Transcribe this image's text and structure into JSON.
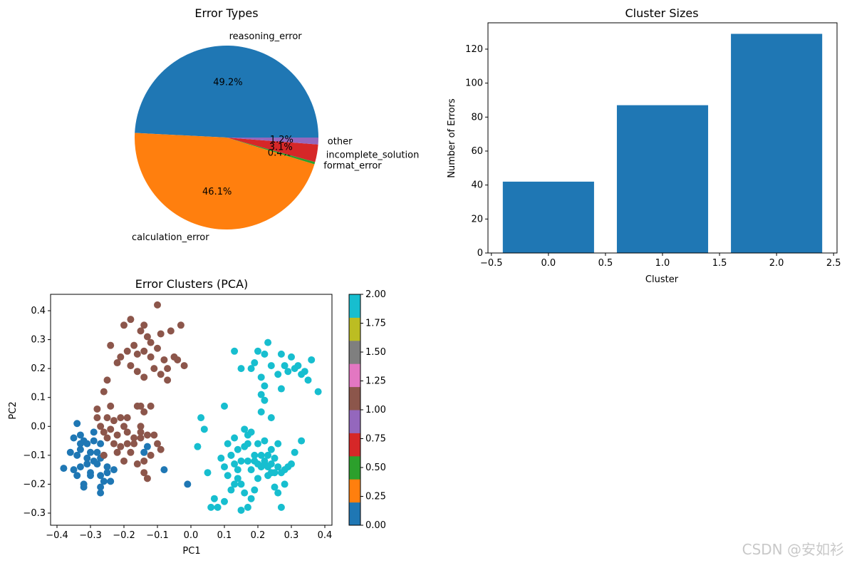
{
  "chart_data": [
    {
      "type": "pie",
      "title": "Error Types",
      "slices": [
        {
          "label": "reasoning_error",
          "value": 49.2,
          "pct_label": "49.2%",
          "color": "#1f77b4"
        },
        {
          "label": "calculation_error",
          "value": 46.1,
          "pct_label": "46.1%",
          "color": "#ff7f0e"
        },
        {
          "label": "format_error",
          "value": 0.4,
          "pct_label": "0.4%",
          "color": "#2ca02c"
        },
        {
          "label": "incomplete_solution",
          "value": 3.1,
          "pct_label": "3.1%",
          "color": "#d62728"
        },
        {
          "label": "other",
          "value": 1.2,
          "pct_label": "1.2%",
          "color": "#9467bd"
        }
      ]
    },
    {
      "type": "bar",
      "title": "Cluster Sizes",
      "xlabel": "Cluster",
      "ylabel": "Number of Errors",
      "x": [
        0,
        1,
        2
      ],
      "values": [
        42,
        87,
        129
      ],
      "bar_width": 0.8,
      "color": "#1f77b4",
      "xlim": [
        -0.53,
        2.53
      ],
      "ylim": [
        0,
        135.5
      ],
      "xticks": [
        "−0.5",
        "0.0",
        "0.5",
        "1.0",
        "1.5",
        "2.0",
        "2.5"
      ],
      "yticks": [
        "0",
        "20",
        "40",
        "60",
        "80",
        "100",
        "120"
      ]
    },
    {
      "type": "scatter",
      "title": "Error Clusters (PCA)",
      "xlabel": "PC1",
      "ylabel": "PC2",
      "xlim": [
        -0.4,
        0.4
      ],
      "ylim": [
        -0.3,
        0.4
      ],
      "xticks": [
        "−0.4",
        "−0.3",
        "−0.2",
        "−0.1",
        "0.0",
        "0.1",
        "0.2",
        "0.3",
        "0.4"
      ],
      "yticks": [
        "−0.3",
        "−0.2",
        "−0.1",
        "0.0",
        "0.1",
        "0.2",
        "0.3",
        "0.4"
      ],
      "colorbar": {
        "range": [
          0,
          2
        ],
        "ticks": [
          "0.00",
          "0.25",
          "0.50",
          "0.75",
          "1.00",
          "1.25",
          "1.50",
          "1.75",
          "2.00"
        ],
        "colors": [
          "#1f77b4",
          "#ff7f0e",
          "#2ca02c",
          "#d62728",
          "#9467bd",
          "#8c564b",
          "#e377c2",
          "#7f7f7f",
          "#bcbd22",
          "#17becf"
        ]
      },
      "series": [
        {
          "cluster": 0,
          "color": "#1f77b4",
          "points": [
            [
              -0.38,
              -0.145
            ],
            [
              -0.35,
              -0.04
            ],
            [
              -0.34,
              0.01
            ],
            [
              -0.33,
              -0.03
            ],
            [
              -0.32,
              -0.05
            ],
            [
              -0.33,
              -0.08
            ],
            [
              -0.34,
              -0.1
            ],
            [
              -0.31,
              -0.06
            ],
            [
              -0.3,
              -0.09
            ],
            [
              -0.29,
              -0.12
            ],
            [
              -0.28,
              -0.13
            ],
            [
              -0.27,
              -0.11
            ],
            [
              -0.27,
              -0.17
            ],
            [
              -0.26,
              -0.19
            ],
            [
              -0.25,
              -0.14
            ],
            [
              -0.24,
              -0.19
            ],
            [
              -0.31,
              -0.13
            ],
            [
              -0.32,
              -0.2
            ],
            [
              -0.3,
              -0.16
            ],
            [
              -0.29,
              -0.05
            ],
            [
              -0.29,
              -0.02
            ],
            [
              -0.27,
              -0.06
            ],
            [
              -0.26,
              -0.1
            ],
            [
              -0.23,
              -0.15
            ],
            [
              -0.35,
              -0.15
            ],
            [
              -0.34,
              -0.17
            ],
            [
              -0.33,
              -0.14
            ],
            [
              -0.32,
              -0.21
            ],
            [
              -0.27,
              -0.21
            ],
            [
              -0.27,
              -0.23
            ],
            [
              -0.3,
              -0.17
            ],
            [
              -0.25,
              -0.16
            ],
            [
              -0.28,
              -0.09
            ],
            [
              -0.14,
              -0.09
            ],
            [
              -0.13,
              -0.07
            ],
            [
              -0.08,
              -0.15
            ],
            [
              -0.01,
              -0.2
            ],
            [
              -0.33,
              -0.06
            ],
            [
              -0.36,
              -0.09
            ],
            [
              -0.31,
              -0.11
            ]
          ]
        },
        {
          "cluster": 1,
          "color": "#8c564b",
          "points": [
            [
              -0.16,
              0.25
            ],
            [
              -0.18,
              0.37
            ],
            [
              -0.2,
              0.35
            ],
            [
              -0.14,
              0.35
            ],
            [
              -0.1,
              0.42
            ],
            [
              -0.15,
              0.33
            ],
            [
              -0.13,
              0.31
            ],
            [
              -0.12,
              0.29
            ],
            [
              -0.09,
              0.32
            ],
            [
              -0.06,
              0.33
            ],
            [
              -0.03,
              0.35
            ],
            [
              -0.17,
              0.28
            ],
            [
              -0.19,
              0.26
            ],
            [
              -0.21,
              0.24
            ],
            [
              -0.24,
              0.28
            ],
            [
              -0.22,
              0.22
            ],
            [
              -0.18,
              0.21
            ],
            [
              -0.16,
              0.19
            ],
            [
              -0.14,
              0.17
            ],
            [
              -0.11,
              0.2
            ],
            [
              -0.08,
              0.23
            ],
            [
              -0.07,
              0.2
            ],
            [
              -0.05,
              0.24
            ],
            [
              -0.04,
              0.23
            ],
            [
              -0.02,
              0.21
            ],
            [
              -0.1,
              0.27
            ],
            [
              -0.12,
              0.24
            ],
            [
              -0.14,
              0.26
            ],
            [
              -0.07,
              0.16
            ],
            [
              -0.09,
              0.18
            ],
            [
              -0.25,
              0.16
            ],
            [
              -0.26,
              0.12
            ],
            [
              -0.24,
              0.07
            ],
            [
              -0.28,
              0.06
            ],
            [
              -0.28,
              0.03
            ],
            [
              -0.25,
              0.03
            ],
            [
              -0.23,
              0.02
            ],
            [
              -0.21,
              0.03
            ],
            [
              -0.2,
              0.0
            ],
            [
              -0.19,
              -0.02
            ],
            [
              -0.17,
              -0.04
            ],
            [
              -0.16,
              0.07
            ],
            [
              -0.15,
              0.07
            ],
            [
              -0.14,
              0.05
            ],
            [
              -0.12,
              0.07
            ],
            [
              -0.11,
              -0.03
            ],
            [
              -0.13,
              -0.03
            ],
            [
              -0.15,
              -0.04
            ],
            [
              -0.1,
              -0.06
            ],
            [
              -0.09,
              -0.08
            ],
            [
              -0.12,
              -0.1
            ],
            [
              -0.14,
              -0.12
            ],
            [
              -0.16,
              -0.13
            ],
            [
              -0.18,
              -0.09
            ],
            [
              -0.21,
              -0.07
            ],
            [
              -0.23,
              -0.06
            ],
            [
              -0.25,
              -0.04
            ],
            [
              -0.26,
              -0.02
            ],
            [
              -0.27,
              0.0
            ],
            [
              -0.24,
              -0.01
            ],
            [
              -0.22,
              -0.03
            ],
            [
              -0.19,
              -0.06
            ],
            [
              -0.17,
              -0.06
            ],
            [
              -0.15,
              -0.02
            ],
            [
              -0.13,
              -0.18
            ],
            [
              -0.14,
              -0.16
            ],
            [
              -0.22,
              -0.09
            ],
            [
              -0.2,
              -0.12
            ],
            [
              -0.26,
              -0.1
            ],
            [
              -0.15,
              0.0
            ],
            [
              -0.19,
              0.03
            ]
          ]
        },
        {
          "cluster": 2,
          "color": "#17becf",
          "points": [
            [
              0.15,
              0.2
            ],
            [
              0.18,
              0.2
            ],
            [
              0.2,
              0.26
            ],
            [
              0.23,
              0.29
            ],
            [
              0.27,
              0.25
            ],
            [
              0.3,
              0.24
            ],
            [
              0.32,
              0.21
            ],
            [
              0.34,
              0.19
            ],
            [
              0.36,
              0.23
            ],
            [
              0.38,
              0.12
            ],
            [
              0.28,
              0.21
            ],
            [
              0.26,
              0.18
            ],
            [
              0.24,
              0.21
            ],
            [
              0.22,
              0.25
            ],
            [
              0.21,
              0.17
            ],
            [
              0.19,
              0.22
            ],
            [
              0.13,
              0.26
            ],
            [
              0.22,
              0.14
            ],
            [
              0.21,
              0.11
            ],
            [
              0.22,
              0.09
            ],
            [
              0.27,
              0.13
            ],
            [
              0.33,
              0.18
            ],
            [
              0.35,
              0.16
            ],
            [
              0.31,
              0.2
            ],
            [
              0.29,
              0.19
            ],
            [
              0.24,
              0.03
            ],
            [
              0.21,
              0.05
            ],
            [
              0.1,
              0.07
            ],
            [
              0.03,
              0.03
            ],
            [
              0.04,
              -0.01
            ],
            [
              0.02,
              -0.07
            ],
            [
              0.05,
              -0.16
            ],
            [
              0.07,
              -0.25
            ],
            [
              0.06,
              -0.28
            ],
            [
              0.08,
              -0.28
            ],
            [
              0.1,
              -0.26
            ],
            [
              0.11,
              -0.06
            ],
            [
              0.12,
              -0.1
            ],
            [
              0.13,
              -0.04
            ],
            [
              0.14,
              -0.15
            ],
            [
              0.15,
              -0.2
            ],
            [
              0.16,
              -0.23
            ],
            [
              0.17,
              -0.28
            ],
            [
              0.15,
              -0.29
            ],
            [
              0.18,
              -0.25
            ],
            [
              0.19,
              -0.22
            ],
            [
              0.2,
              -0.18
            ],
            [
              0.21,
              -0.14
            ],
            [
              0.22,
              -0.12
            ],
            [
              0.23,
              -0.1
            ],
            [
              0.24,
              -0.08
            ],
            [
              0.25,
              -0.11
            ],
            [
              0.26,
              -0.14
            ],
            [
              0.27,
              -0.16
            ],
            [
              0.28,
              -0.15
            ],
            [
              0.29,
              -0.14
            ],
            [
              0.3,
              -0.13
            ],
            [
              0.31,
              -0.09
            ],
            [
              0.33,
              -0.05
            ],
            [
              0.17,
              -0.03
            ],
            [
              0.16,
              -0.07
            ],
            [
              0.15,
              -0.12
            ],
            [
              0.14,
              -0.18
            ],
            [
              0.13,
              -0.2
            ],
            [
              0.12,
              -0.22
            ],
            [
              0.11,
              -0.17
            ],
            [
              0.1,
              -0.14
            ],
            [
              0.09,
              -0.11
            ],
            [
              0.18,
              -0.02
            ],
            [
              0.2,
              -0.06
            ],
            [
              0.22,
              -0.05
            ],
            [
              0.24,
              -0.13
            ],
            [
              0.25,
              -0.21
            ],
            [
              0.26,
              -0.23
            ],
            [
              0.27,
              -0.28
            ],
            [
              0.28,
              -0.2
            ],
            [
              0.18,
              -0.15
            ],
            [
              0.19,
              -0.12
            ],
            [
              0.2,
              -0.13
            ],
            [
              0.21,
              -0.1
            ],
            [
              0.23,
              -0.17
            ],
            [
              0.24,
              -0.16
            ],
            [
              0.25,
              -0.16
            ],
            [
              0.16,
              -0.01
            ],
            [
              0.17,
              -0.06
            ],
            [
              0.12,
              -0.1
            ],
            [
              0.14,
              -0.08
            ],
            [
              0.13,
              -0.13
            ],
            [
              0.17,
              -0.12
            ],
            [
              0.19,
              -0.1
            ],
            [
              0.22,
              -0.13
            ],
            [
              0.23,
              -0.14
            ],
            [
              0.26,
              -0.06
            ]
          ]
        }
      ]
    }
  ],
  "watermark": "CSDN @安如衫"
}
